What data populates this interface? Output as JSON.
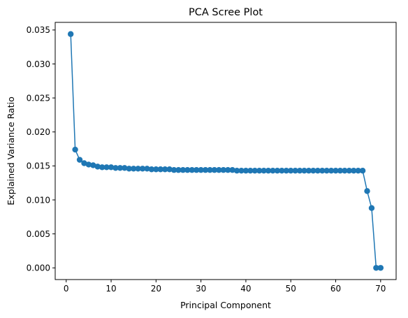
{
  "chart_data": {
    "type": "line",
    "title": "PCA Scree Plot",
    "xlabel": "Principal Component",
    "ylabel": "Explained Variance Ratio",
    "xlim": [
      -2.45,
      73.45
    ],
    "ylim": [
      -0.00172,
      0.03612
    ],
    "xticks": [
      0,
      10,
      20,
      30,
      40,
      50,
      60,
      70
    ],
    "yticks": [
      0.0,
      0.005,
      0.01,
      0.015,
      0.02,
      0.025,
      0.03,
      0.035
    ],
    "ytick_labels": [
      "0.000",
      "0.005",
      "0.010",
      "0.015",
      "0.020",
      "0.025",
      "0.030",
      "0.035"
    ],
    "xtick_labels": [
      "0",
      "10",
      "20",
      "30",
      "40",
      "50",
      "60",
      "70"
    ],
    "grid": false,
    "color": "#1f77b4",
    "marker": "circle",
    "series": [
      {
        "x": [
          1,
          2,
          3,
          4,
          5,
          6,
          7,
          8,
          9,
          10,
          11,
          12,
          13,
          14,
          15,
          16,
          17,
          18,
          19,
          20,
          21,
          22,
          23,
          24,
          25,
          26,
          27,
          28,
          29,
          30,
          31,
          32,
          33,
          34,
          35,
          36,
          37,
          38,
          39,
          40,
          41,
          42,
          43,
          44,
          45,
          46,
          47,
          48,
          49,
          50,
          51,
          52,
          53,
          54,
          55,
          56,
          57,
          58,
          59,
          60,
          61,
          62,
          63,
          64,
          65,
          66,
          67,
          68,
          69,
          70
        ],
        "values": [
          0.0344,
          0.0174,
          0.0159,
          0.0154,
          0.0152,
          0.0151,
          0.0149,
          0.0148,
          0.0148,
          0.0148,
          0.0147,
          0.0147,
          0.0147,
          0.0146,
          0.0146,
          0.0146,
          0.0146,
          0.0146,
          0.0145,
          0.0145,
          0.0145,
          0.0145,
          0.0145,
          0.0144,
          0.0144,
          0.0144,
          0.0144,
          0.0144,
          0.0144,
          0.0144,
          0.0144,
          0.0144,
          0.0144,
          0.0144,
          0.0144,
          0.0144,
          0.0144,
          0.0143,
          0.0143,
          0.0143,
          0.0143,
          0.0143,
          0.0143,
          0.0143,
          0.0143,
          0.0143,
          0.0143,
          0.0143,
          0.0143,
          0.0143,
          0.0143,
          0.0143,
          0.0143,
          0.0143,
          0.0143,
          0.0143,
          0.0143,
          0.0143,
          0.0143,
          0.0143,
          0.0143,
          0.0143,
          0.0143,
          0.0143,
          0.0143,
          0.0143,
          0.0113,
          0.0088,
          0.0,
          0.0
        ]
      }
    ]
  }
}
